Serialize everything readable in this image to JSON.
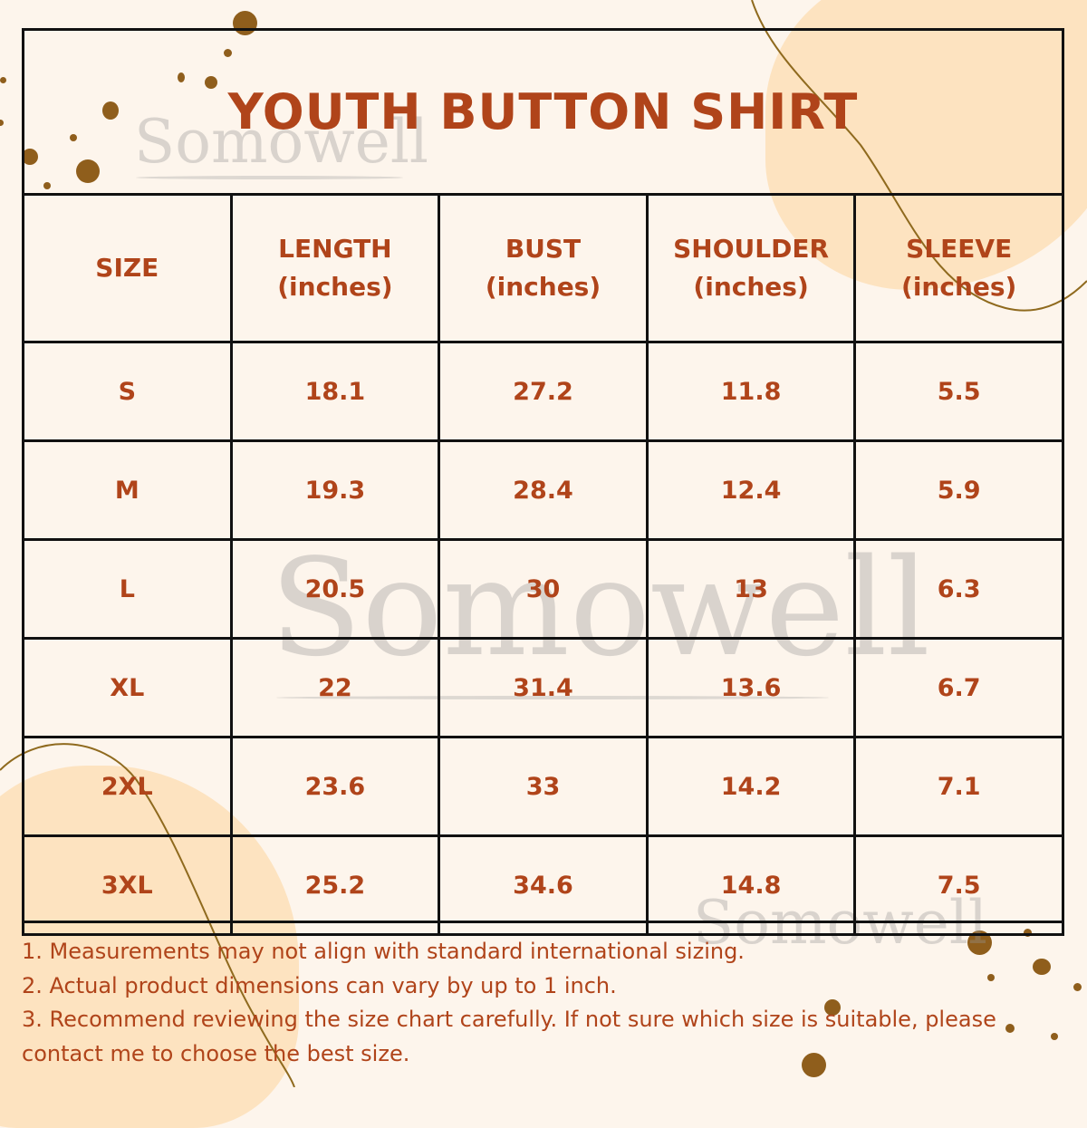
{
  "title": "YOUTH BUTTON SHIRT",
  "watermark": "Somowell",
  "colors": {
    "text": "#b0441a",
    "background": "#fdf5ec",
    "accent_blob": "#fde3c0",
    "dots": "#8f5e1c",
    "border": "#111111"
  },
  "table": {
    "headers": [
      {
        "label": "SIZE",
        "unit": ""
      },
      {
        "label": "LENGTH",
        "unit": "(inches)"
      },
      {
        "label": "BUST",
        "unit": "(inches)"
      },
      {
        "label": "SHOULDER",
        "unit": "(inches)"
      },
      {
        "label": "SLEEVE",
        "unit": "(inches)"
      }
    ],
    "rows": [
      [
        "S",
        "18.1",
        "27.2",
        "11.8",
        "5.5"
      ],
      [
        "M",
        "19.3",
        "28.4",
        "12.4",
        "5.9"
      ],
      [
        "L",
        "20.5",
        "30",
        "13",
        "6.3"
      ],
      [
        "XL",
        "22",
        "31.4",
        "13.6",
        "6.7"
      ],
      [
        "2XL",
        "23.6",
        "33",
        "14.2",
        "7.1"
      ],
      [
        "3XL",
        "25.2",
        "34.6",
        "14.8",
        "7.5"
      ]
    ]
  },
  "notes": [
    "1. Measurements may not align with standard international sizing.",
    "2. Actual product dimensions can vary by up to 1 inch.",
    "3. Recommend reviewing the size chart carefully. If not sure which size is suitable, please contact me to choose the best size."
  ]
}
